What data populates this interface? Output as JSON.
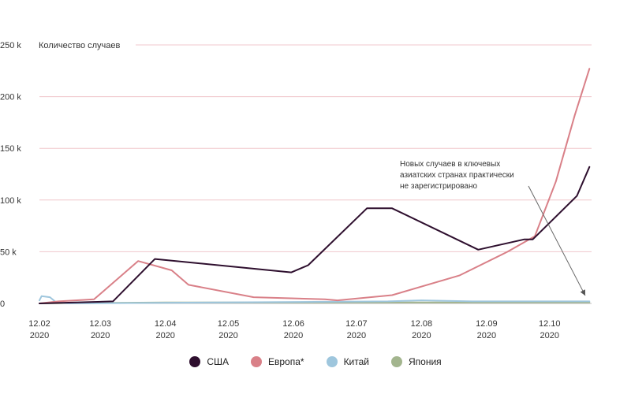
{
  "chart_data": {
    "type": "line",
    "ylabel": "Количество случаев",
    "ylim": [
      0,
      250
    ],
    "yticks": [
      0,
      50,
      100,
      150,
      200,
      250
    ],
    "ytick_labels": [
      "0",
      "50 k",
      "100 k",
      "150 k",
      "200 k",
      "250 k"
    ],
    "xlim": [
      "2020-02-12",
      "2020-11-01"
    ],
    "xticks": [
      {
        "date": "2020-02-12",
        "line1": "12.02",
        "line2": "2020"
      },
      {
        "date": "2020-03-12",
        "line1": "12.03",
        "line2": "2020"
      },
      {
        "date": "2020-04-12",
        "line1": "12.04",
        "line2": "2020"
      },
      {
        "date": "2020-05-12",
        "line1": "12.05",
        "line2": "2020"
      },
      {
        "date": "2020-06-12",
        "line1": "12.06",
        "line2": "2020"
      },
      {
        "date": "2020-07-12",
        "line1": "12.07",
        "line2": "2020"
      },
      {
        "date": "2020-08-12",
        "line1": "12.08",
        "line2": "2020"
      },
      {
        "date": "2020-09-12",
        "line1": "12.09",
        "line2": "2020"
      },
      {
        "date": "2020-10-12",
        "line1": "12.10",
        "line2": "2020"
      }
    ],
    "grid": true,
    "legend_position": "bottom",
    "annotation": {
      "lines": [
        "Новых случаев в ключевых",
        "азиатских странах практически",
        "не зарегистрировано"
      ],
      "arrow_to": {
        "date": "2020-10-29",
        "value": 3
      }
    },
    "series": [
      {
        "name": "США",
        "color": "#2e0f2e",
        "points": [
          [
            "2020-02-12",
            0
          ],
          [
            "2020-03-18",
            2
          ],
          [
            "2020-04-07",
            43
          ],
          [
            "2020-06-11",
            30
          ],
          [
            "2020-06-19",
            37
          ],
          [
            "2020-07-17",
            92
          ],
          [
            "2020-07-29",
            92
          ],
          [
            "2020-09-08",
            52
          ],
          [
            "2020-09-30",
            62
          ],
          [
            "2020-10-04",
            62
          ],
          [
            "2020-10-25",
            104
          ],
          [
            "2020-10-31",
            132
          ]
        ]
      },
      {
        "name": "Европа*",
        "color": "#d98088",
        "points": [
          [
            "2020-02-12",
            0
          ],
          [
            "2020-02-21",
            2
          ],
          [
            "2020-03-09",
            4
          ],
          [
            "2020-03-30",
            41
          ],
          [
            "2020-04-15",
            32
          ],
          [
            "2020-04-23",
            18
          ],
          [
            "2020-05-24",
            6
          ],
          [
            "2020-06-27",
            4
          ],
          [
            "2020-07-03",
            3
          ],
          [
            "2020-07-29",
            8
          ],
          [
            "2020-08-30",
            27
          ],
          [
            "2020-09-22",
            50
          ],
          [
            "2020-10-05",
            65
          ],
          [
            "2020-10-15",
            118
          ],
          [
            "2020-10-24",
            182
          ],
          [
            "2020-10-31",
            227
          ]
        ]
      },
      {
        "name": "Китай",
        "color": "#9ec6dd",
        "points": [
          [
            "2020-02-12",
            3
          ],
          [
            "2020-02-13",
            7
          ],
          [
            "2020-02-17",
            6
          ],
          [
            "2020-02-20",
            1
          ],
          [
            "2020-02-26",
            0
          ],
          [
            "2020-07-27",
            2
          ],
          [
            "2020-08-12",
            3
          ],
          [
            "2020-09-05",
            2
          ],
          [
            "2020-10-31",
            2
          ]
        ]
      },
      {
        "name": "Япония",
        "color": "#a3b58e",
        "points": [
          [
            "2020-02-12",
            0
          ],
          [
            "2020-04-12",
            1
          ],
          [
            "2020-07-12",
            1
          ],
          [
            "2020-08-12",
            1
          ],
          [
            "2020-10-31",
            1
          ]
        ]
      }
    ]
  }
}
